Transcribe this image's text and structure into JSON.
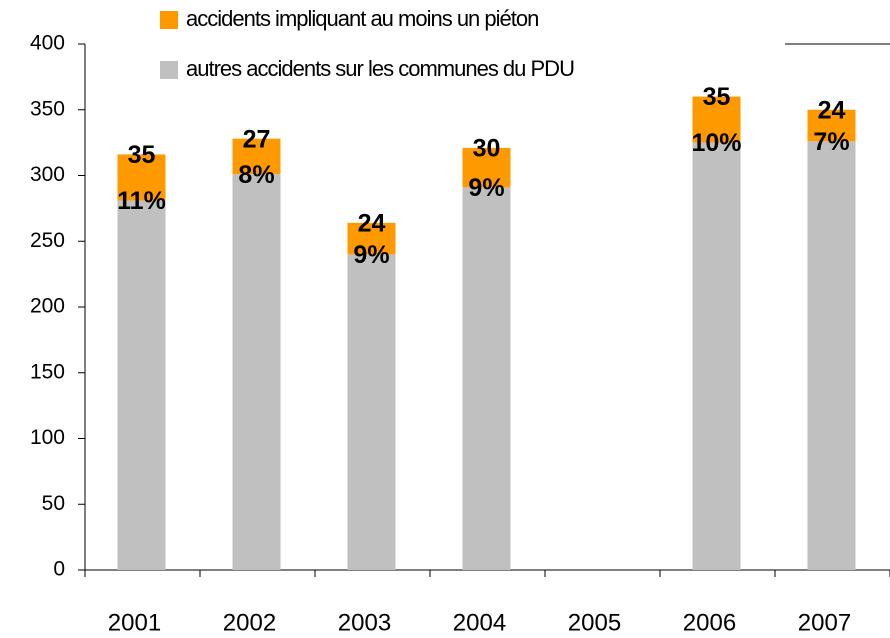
{
  "chart_data": {
    "type": "stacked_bar",
    "categories": [
      "2001",
      "2002",
      "2003",
      "2004",
      "2005",
      "2006",
      "2007"
    ],
    "series": [
      {
        "name": "autres accidents sur les communes du PDU",
        "color": "#c0c0c0",
        "values": [
          281,
          301,
          240,
          291,
          null,
          325,
          326
        ]
      },
      {
        "name": "accidents impliquant au moins un piéton",
        "color": "#ff9900",
        "values": [
          35,
          27,
          24,
          30,
          null,
          35,
          24
        ]
      }
    ],
    "annotations": [
      "11%",
      "8%",
      "9%",
      "9%",
      null,
      "10%",
      "7%"
    ],
    "ylim": [
      0,
      400
    ],
    "yticks": [
      0,
      50,
      100,
      150,
      200,
      250,
      300,
      350,
      400
    ]
  }
}
